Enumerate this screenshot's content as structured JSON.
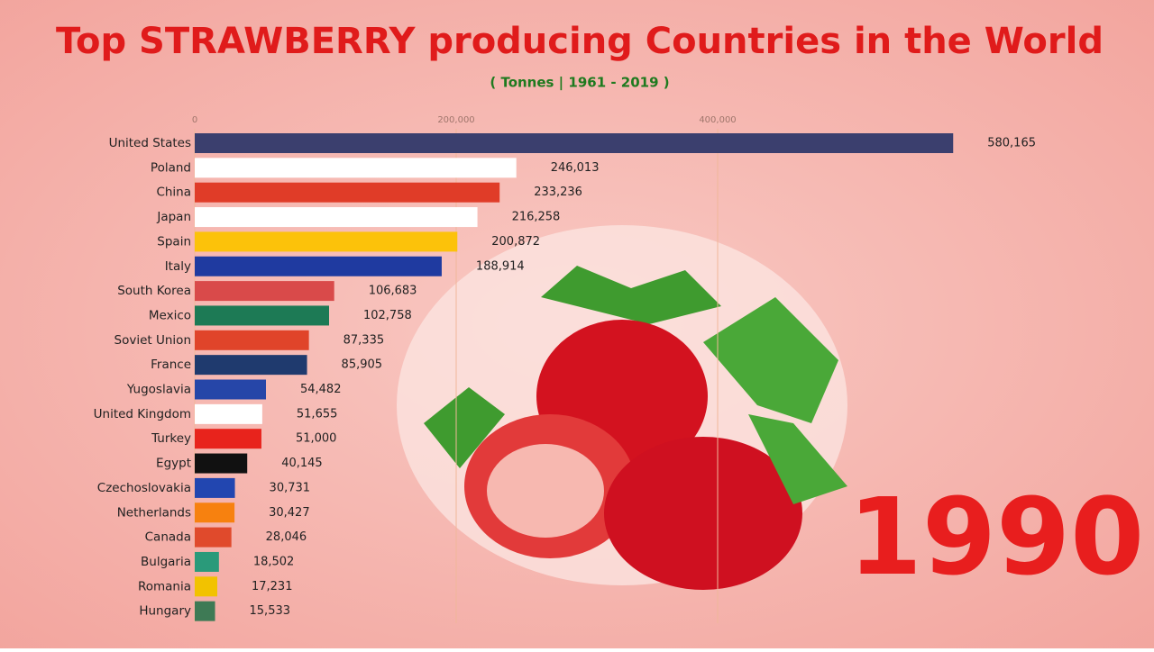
{
  "chart_data": {
    "type": "bar",
    "orientation": "horizontal",
    "title": "Top STRAWBERRY producing Countries in the World",
    "subtitle": "( Tonnes | 1961 - 2019 )",
    "annotation": "1990",
    "categories": [
      "United States",
      "Poland",
      "China",
      "Japan",
      "Spain",
      "Italy",
      "South Korea",
      "Mexico",
      "Soviet Union",
      "France",
      "Yugoslavia",
      "United Kingdom",
      "Turkey",
      "Egypt",
      "Czechoslovakia",
      "Netherlands",
      "Canada",
      "Bulgaria",
      "Romania",
      "Hungary"
    ],
    "values": [
      580165,
      246013,
      233236,
      216258,
      200872,
      188914,
      106683,
      102758,
      87335,
      85905,
      54482,
      51655,
      51000,
      40145,
      30731,
      30427,
      28046,
      18502,
      17231,
      15533
    ],
    "value_labels": [
      "580,165",
      "246,013",
      "233,236",
      "216,258",
      "200,872",
      "188,914",
      "106,683",
      "102,758",
      "87,335",
      "85,905",
      "54,482",
      "51,655",
      "51,000",
      "40,145",
      "30,731",
      "30,427",
      "28,046",
      "18,502",
      "17,231",
      "15,533"
    ],
    "colors": [
      "#3b3f6e",
      "#ffffff",
      "#e03c28",
      "#ffffff",
      "#fcc20a",
      "#1f3aa0",
      "#d94a4a",
      "#1d7a55",
      "#e0442a",
      "#1f3a6e",
      "#2646a8",
      "#ffffff",
      "#e8231c",
      "#111111",
      "#2246b0",
      "#f7810f",
      "#e04a2c",
      "#2a9a7a",
      "#f2c200",
      "#3e7a55"
    ],
    "xlim": [
      0,
      600000
    ],
    "xticks": [
      0,
      {
        "value": 200000,
        "label": "200,000"
      },
      {
        "value": 400000,
        "label": "400,000"
      }
    ],
    "grid": true
  }
}
